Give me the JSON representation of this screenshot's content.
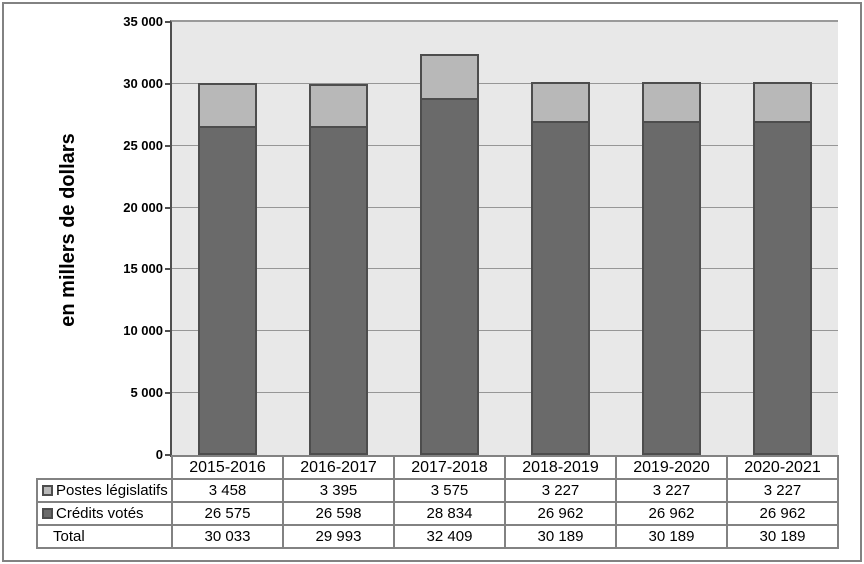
{
  "colors": {
    "plot_background": "#e8e8e8",
    "bar_light": "#b8b8b8",
    "bar_dark": "#6a6a6a",
    "bar_border": "#4d4d4d",
    "gridline": "#969696",
    "table_border": "#828282",
    "frame_border": "#828282"
  },
  "chart_data": {
    "type": "bar",
    "stacked": true,
    "title": "",
    "xlabel": "",
    "ylabel": "en millers de dollars",
    "ylim": [
      0,
      35000
    ],
    "grid": true,
    "legend_position": "table-left",
    "categories": [
      "2015-2016",
      "2016-2017",
      "2017-2018",
      "2018-2019",
      "2019-2020",
      "2020-2021"
    ],
    "series": [
      {
        "name": "Crédits votés",
        "color": "#6a6a6a",
        "values": [
          26575,
          26598,
          28834,
          26962,
          26962,
          26962
        ]
      },
      {
        "name": "Postes législatifs",
        "color": "#b8b8b8",
        "values": [
          3458,
          3395,
          3575,
          3227,
          3227,
          3227
        ]
      }
    ],
    "totals": [
      30033,
      29993,
      32409,
      30189,
      30189,
      30189
    ],
    "y_ticks": [
      {
        "value": 0,
        "label": "0"
      },
      {
        "value": 5000,
        "label": "5 000"
      },
      {
        "value": 10000,
        "label": "10 000"
      },
      {
        "value": 15000,
        "label": "15 000"
      },
      {
        "value": 20000,
        "label": "20 000"
      },
      {
        "value": 25000,
        "label": "25 000"
      },
      {
        "value": 30000,
        "label": "30 000"
      },
      {
        "value": 35000,
        "label": "35 000"
      }
    ]
  },
  "table": {
    "columns": [
      "2015-2016",
      "2016-2017",
      "2017-2018",
      "2018-2019",
      "2019-2020",
      "2020-2021"
    ],
    "rows": [
      {
        "label": "Postes législatifs",
        "swatch": "#b8b8b8",
        "values": [
          "3 458",
          "3 395",
          "3 575",
          "3 227",
          "3 227",
          "3 227"
        ]
      },
      {
        "label": "Crédits votés",
        "swatch": "#6a6a6a",
        "values": [
          "26 575",
          "26 598",
          "28 834",
          "26 962",
          "26 962",
          "26 962"
        ]
      },
      {
        "label": "Total",
        "swatch": null,
        "values": [
          "30 033",
          "29 993",
          "32 409",
          "30 189",
          "30 189",
          "30 189"
        ]
      }
    ]
  }
}
